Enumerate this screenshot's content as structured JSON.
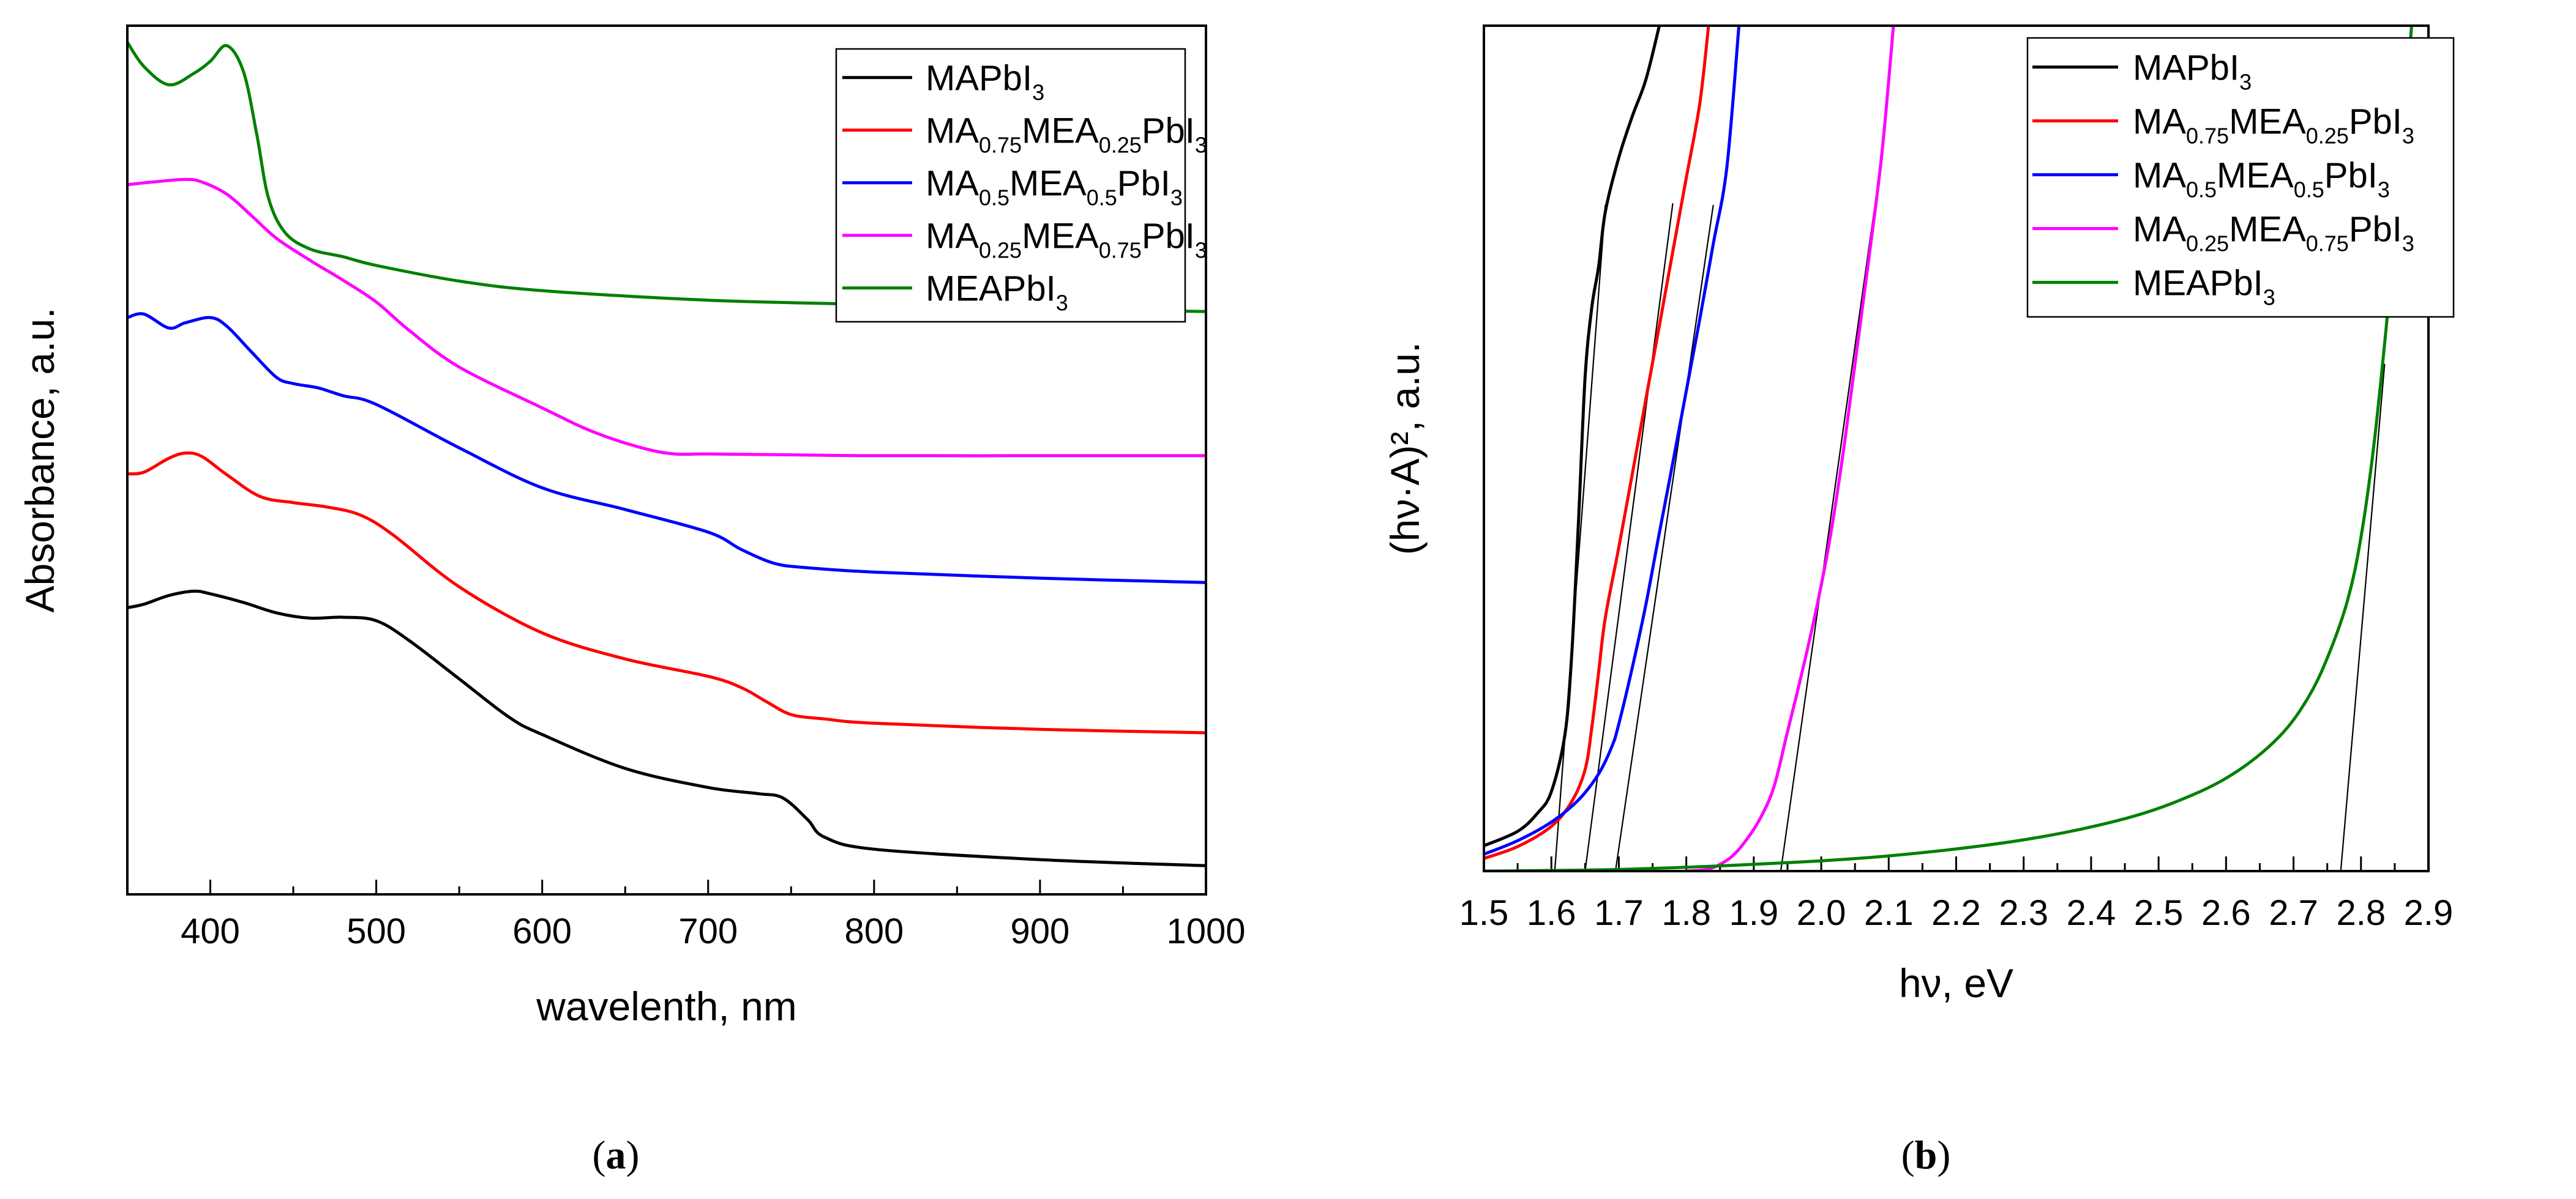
{
  "colors": {
    "MAPbI3": "#000000",
    "MA075": "#ff0000",
    "MA05": "#0000ff",
    "MA025": "#ff00ff",
    "MEAPbI3": "#008000"
  },
  "legend": [
    {
      "key": "MAPbI3",
      "parts": [
        [
          "MAPbI",
          0
        ],
        [
          "3",
          1
        ]
      ]
    },
    {
      "key": "MA075",
      "parts": [
        [
          "MA",
          0
        ],
        [
          "0.75",
          1
        ],
        [
          "MEA",
          0
        ],
        [
          "0.25",
          1
        ],
        [
          "PbI",
          0
        ],
        [
          "3",
          1
        ]
      ]
    },
    {
      "key": "MA05",
      "parts": [
        [
          "MA",
          0
        ],
        [
          "0.5",
          1
        ],
        [
          "MEA",
          0
        ],
        [
          "0.5",
          1
        ],
        [
          "PbI",
          0
        ],
        [
          "3",
          1
        ]
      ]
    },
    {
      "key": "MA025",
      "parts": [
        [
          "MA",
          0
        ],
        [
          "0.25",
          1
        ],
        [
          "MEA",
          0
        ],
        [
          "0.75",
          1
        ],
        [
          "PbI",
          0
        ],
        [
          "3",
          1
        ]
      ]
    },
    {
      "key": "MEAPbI3",
      "parts": [
        [
          "MEAPbI",
          0
        ],
        [
          "3",
          1
        ]
      ]
    }
  ],
  "panel_labels": {
    "a": "a",
    "b": "b"
  },
  "chart_data": [
    {
      "panel": "a",
      "type": "line",
      "title": "",
      "xlabel": "wavelenth, nm",
      "ylabel": "Absorbance, a.u.",
      "xlim": [
        350,
        1000
      ],
      "ylim": [
        0,
        100
      ],
      "xticks": [
        400,
        500,
        600,
        700,
        800,
        900,
        1000
      ],
      "xtick_labels": [
        "400",
        "500",
        "600",
        "700",
        "800",
        "900",
        "1000"
      ],
      "y_tick_labels_shown": false,
      "legend_position": "top-right",
      "series": [
        {
          "key": "MAPbI3",
          "name": "MAPbI3",
          "x": [
            350,
            360,
            375,
            390,
            400,
            420,
            440,
            460,
            480,
            500,
            520,
            550,
            580,
            600,
            650,
            700,
            730,
            745,
            760,
            770,
            800,
            900,
            1000
          ],
          "y": [
            33.0,
            33.4,
            34.4,
            34.9,
            34.6,
            33.6,
            32.4,
            31.8,
            31.9,
            31.5,
            29.2,
            24.8,
            20.4,
            18.4,
            14.5,
            12.3,
            11.6,
            11.1,
            8.6,
            6.6,
            5.2,
            4.0,
            3.3
          ]
        },
        {
          "key": "MA075",
          "name": "MA0.75MEA0.25PbI3",
          "x": [
            350,
            360,
            375,
            385,
            395,
            410,
            430,
            450,
            470,
            490,
            510,
            550,
            600,
            650,
            700,
            720,
            735,
            750,
            770,
            800,
            900,
            1000
          ],
          "y": [
            48.4,
            48.6,
            50.2,
            50.8,
            50.4,
            48.3,
            45.8,
            45.1,
            44.6,
            43.7,
            41.4,
            35.4,
            30.1,
            27.1,
            25.1,
            23.8,
            22.2,
            20.7,
            20.2,
            19.7,
            19.0,
            18.6
          ]
        },
        {
          "key": "MA05",
          "name": "MA0.5MEA0.5PbI3",
          "x": [
            350,
            360,
            375,
            385,
            400,
            410,
            425,
            440,
            450,
            465,
            480,
            500,
            550,
            600,
            650,
            700,
            720,
            740,
            760,
            800,
            900,
            1000
          ],
          "y": [
            66.4,
            66.8,
            65.2,
            65.8,
            66.4,
            65.4,
            62.4,
            59.5,
            58.8,
            58.3,
            57.4,
            56.4,
            51.4,
            46.8,
            44.3,
            41.7,
            39.7,
            38.1,
            37.6,
            37.1,
            36.4,
            35.9
          ]
        },
        {
          "key": "MA025",
          "name": "MA0.25MEA0.75PbI3",
          "x": [
            350,
            365,
            385,
            395,
            410,
            425,
            440,
            460,
            480,
            500,
            520,
            550,
            600,
            630,
            660,
            680,
            700,
            750,
            800,
            900,
            1000
          ],
          "y": [
            81.7,
            82.0,
            82.3,
            82.0,
            80.6,
            78.1,
            75.5,
            73.0,
            70.7,
            68.2,
            64.9,
            60.7,
            56.0,
            53.3,
            51.4,
            50.7,
            50.7,
            50.6,
            50.5,
            50.5,
            50.5
          ]
        },
        {
          "key": "MEAPbI3",
          "name": "MEAPbI3",
          "x": [
            350,
            360,
            375,
            390,
            400,
            410,
            420,
            428,
            435,
            445,
            460,
            480,
            500,
            550,
            600,
            700,
            800,
            900,
            1000
          ],
          "y": [
            98.1,
            95.3,
            93.2,
            94.5,
            95.9,
            97.7,
            94.7,
            87.5,
            80.2,
            76.2,
            74.3,
            73.4,
            72.4,
            70.6,
            69.5,
            68.4,
            67.9,
            67.4,
            67.1
          ]
        }
      ]
    },
    {
      "panel": "b",
      "type": "line",
      "title": "",
      "xlabel": "hν, eV",
      "ylabel": "(hν·A)², a.u.",
      "xlim": [
        1.5,
        2.9
      ],
      "ylim": [
        0,
        100
      ],
      "xticks": [
        1.5,
        1.6,
        1.7,
        1.8,
        1.9,
        2.0,
        2.1,
        2.2,
        2.3,
        2.4,
        2.5,
        2.6,
        2.7,
        2.8,
        2.9
      ],
      "xtick_labels": [
        "1.5",
        "1.6",
        "1.7",
        "1.8",
        "1.9",
        "2.0",
        "2.1",
        "2.2",
        "2.3",
        "2.4",
        "2.5",
        "2.6",
        "2.7",
        "2.8",
        "2.9"
      ],
      "y_tick_labels_shown": false,
      "legend_position": "top-right",
      "series": [
        {
          "key": "MAPbI3",
          "name": "MAPbI3",
          "x": [
            1.5,
            1.55,
            1.58,
            1.6,
            1.62,
            1.63,
            1.64,
            1.65,
            1.66,
            1.67,
            1.68,
            1.7,
            1.72,
            1.74,
            1.76
          ],
          "y": [
            3.0,
            4.7,
            6.9,
            9.4,
            16.1,
            25.4,
            41.0,
            58.4,
            66.7,
            71.5,
            78.0,
            84.4,
            89.3,
            93.6,
            100
          ]
        },
        {
          "key": "MA075",
          "name": "MA0.75MEA0.25PbI3",
          "x": [
            1.5,
            1.55,
            1.6,
            1.63,
            1.65,
            1.66,
            1.67,
            1.68,
            1.7,
            1.72,
            1.74,
            1.76,
            1.78,
            1.8,
            1.82,
            1.833
          ],
          "y": [
            1.5,
            2.9,
            5.3,
            8.2,
            12.0,
            17.0,
            23.5,
            30.0,
            38.3,
            47.0,
            55.8,
            64.5,
            73.3,
            82.0,
            90.8,
            100
          ]
        },
        {
          "key": "MA05",
          "name": "MA0.5MEA0.5PbI3",
          "x": [
            1.5,
            1.55,
            1.6,
            1.64,
            1.67,
            1.69,
            1.7,
            1.72,
            1.74,
            1.76,
            1.78,
            1.8,
            1.82,
            1.84,
            1.86,
            1.878
          ],
          "y": [
            2.0,
            3.6,
            5.8,
            8.4,
            11.5,
            14.8,
            17.4,
            24.1,
            31.5,
            40.0,
            48.3,
            56.8,
            65.3,
            74.2,
            83.2,
            100
          ]
        },
        {
          "key": "MA025",
          "name": "MA0.25MEA0.75PbI3",
          "x": [
            1.8,
            1.83,
            1.85,
            1.87,
            1.89,
            1.91,
            1.93,
            1.95,
            1.97,
            1.99,
            2.01,
            2.03,
            2.05,
            2.07,
            2.09,
            2.107
          ],
          "y": [
            0.0,
            0.2,
            0.8,
            1.9,
            3.8,
            6.3,
            10.0,
            16.5,
            23.0,
            30.0,
            38.0,
            48.1,
            60.0,
            72.1,
            85.0,
            100
          ]
        },
        {
          "key": "MEAPbI3",
          "name": "MEAPbI3",
          "x": [
            1.5,
            1.7,
            1.9,
            2.1,
            2.3,
            2.45,
            2.55,
            2.62,
            2.68,
            2.72,
            2.75,
            2.78,
            2.8,
            2.82,
            2.84,
            2.86,
            2.875
          ],
          "y": [
            0.0,
            0.2,
            0.8,
            1.8,
            3.7,
            6.2,
            9.0,
            12.0,
            16.0,
            20.3,
            25.2,
            32.0,
            39.5,
            51.0,
            66.5,
            84.0,
            100
          ]
        }
      ],
      "tangent_lines": [
        {
          "key": "MAPbI3",
          "x": [
            1.605,
            1.68
          ],
          "y": [
            0.0,
            78.8
          ]
        },
        {
          "key": "MA075",
          "x": [
            1.65,
            1.78
          ],
          "y": [
            0.0,
            79.0
          ]
        },
        {
          "key": "MA05",
          "x": [
            1.695,
            1.84
          ],
          "y": [
            0.0,
            78.8
          ]
        },
        {
          "key": "MA025",
          "x": [
            1.94,
            2.08
          ],
          "y": [
            0.0,
            79.0
          ]
        },
        {
          "key": "MEAPbI3",
          "x": [
            2.77,
            2.835
          ],
          "y": [
            0.0,
            60.0
          ]
        }
      ]
    }
  ]
}
